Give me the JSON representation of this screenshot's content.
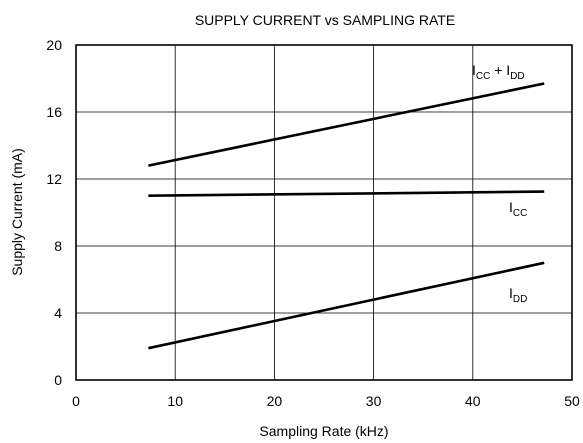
{
  "chart_data": {
    "type": "line",
    "title": "SUPPLY CURRENT vs SAMPLING RATE",
    "xlabel": "Sampling Rate (kHz)",
    "ylabel": "Supply Current (mA)",
    "xlim": [
      0,
      50
    ],
    "ylim": [
      0,
      20
    ],
    "xticks": [
      "0",
      "10",
      "20",
      "30",
      "40",
      "50"
    ],
    "yticks": [
      "0",
      "4",
      "8",
      "12",
      "16",
      "20"
    ],
    "grid": true,
    "series": [
      {
        "name": "ICC + IDD",
        "label_main": "I",
        "label_sub1": "CC",
        "label_mid": " + I",
        "label_sub2": "DD",
        "x": [
          7.3,
          47.2
        ],
        "y": [
          12.8,
          17.7
        ]
      },
      {
        "name": "ICC",
        "label_main": "I",
        "label_sub1": "CC",
        "x": [
          7.3,
          47.2
        ],
        "y": [
          11.0,
          11.25
        ]
      },
      {
        "name": "IDD",
        "label_main": "I",
        "label_sub1": "DD",
        "x": [
          7.3,
          47.2
        ],
        "y": [
          1.9,
          7.0
        ]
      }
    ]
  }
}
